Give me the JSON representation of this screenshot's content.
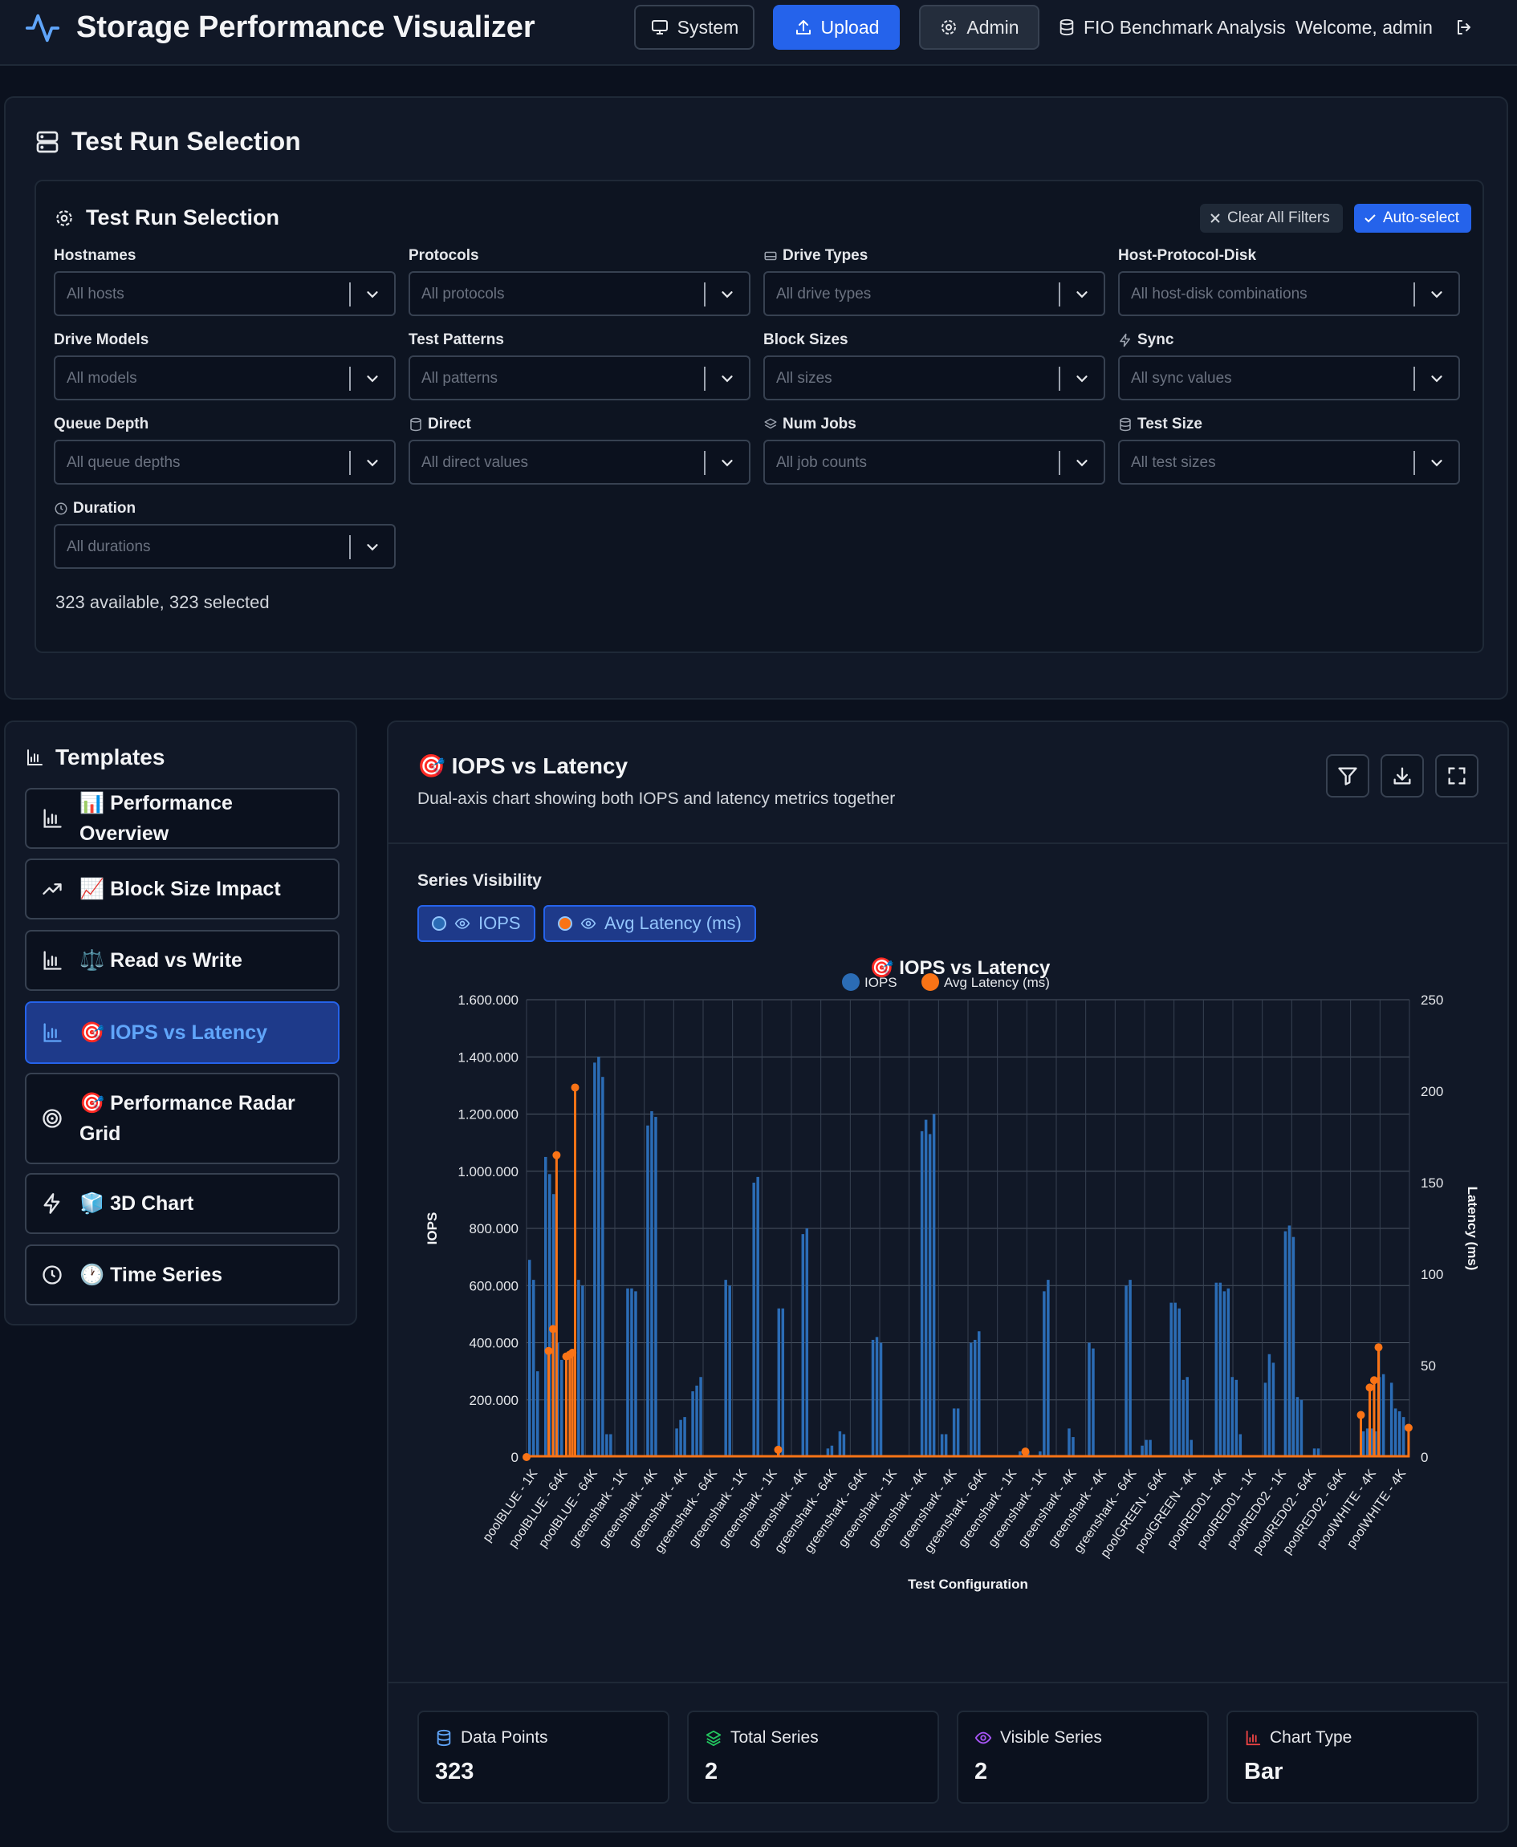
{
  "header": {
    "title": "Storage Performance Visualizer",
    "system_label": "System",
    "upload_label": "Upload",
    "admin_label": "Admin",
    "fio_label": "FIO Benchmark Analysis",
    "welcome": "Welcome, admin"
  },
  "selection": {
    "outer_title": "Test Run Selection",
    "inner_title": "Test Run Selection",
    "clear_label": "Clear All Filters",
    "auto_label": "Auto-select",
    "filters": [
      {
        "label": "Hostnames",
        "placeholder": "All hosts"
      },
      {
        "label": "Protocols",
        "placeholder": "All protocols"
      },
      {
        "label": "Drive Types",
        "placeholder": "All drive types"
      },
      {
        "label": "Host-Protocol-Disk",
        "placeholder": "All host-disk combinations"
      },
      {
        "label": "Drive Models",
        "placeholder": "All models"
      },
      {
        "label": "Test Patterns",
        "placeholder": "All patterns"
      },
      {
        "label": "Block Sizes",
        "placeholder": "All sizes"
      },
      {
        "label": "Sync",
        "placeholder": "All sync values"
      },
      {
        "label": "Queue Depth",
        "placeholder": "All queue depths"
      },
      {
        "label": "Direct",
        "placeholder": "All direct values"
      },
      {
        "label": "Num Jobs",
        "placeholder": "All job counts"
      },
      {
        "label": "Test Size",
        "placeholder": "All test sizes"
      },
      {
        "label": "Duration",
        "placeholder": "All durations"
      }
    ],
    "count_text": "323 available, 323 selected"
  },
  "templates": {
    "title": "Templates",
    "items": [
      {
        "label": "📊 Performance Overview"
      },
      {
        "label": "📈 Block Size Impact"
      },
      {
        "label": "⚖️ Read vs Write"
      },
      {
        "label": "🎯 IOPS vs Latency"
      },
      {
        "label": "🎯 Performance Radar Grid"
      },
      {
        "label": "🧊 3D Chart"
      },
      {
        "label": "🕐 Time Series"
      }
    ]
  },
  "main": {
    "title": "🎯 IOPS vs Latency",
    "description": "Dual-axis chart showing both IOPS and latency metrics together",
    "series_visibility_label": "Series Visibility",
    "series_chips": [
      "IOPS",
      "Avg Latency (ms)"
    ],
    "stats": [
      {
        "label": "Data Points",
        "value": "323"
      },
      {
        "label": "Total Series",
        "value": "2"
      },
      {
        "label": "Visible Series",
        "value": "2"
      },
      {
        "label": "Chart Type",
        "value": "Bar"
      }
    ]
  },
  "colors": {
    "iops": "#2b6cb5",
    "latency": "#f97316",
    "accent": "#2563eb"
  },
  "chart_data": {
    "type": "bar",
    "title": "🎯 IOPS vs Latency",
    "xlabel": "Test Configuration",
    "ylabel": "IOPS",
    "y2label": "Latency (ms)",
    "ylim": [
      0,
      1600000
    ],
    "y2lim": [
      0,
      250
    ],
    "yticks": [
      "0",
      "200.000",
      "400.000",
      "600.000",
      "800.000",
      "1.000.000",
      "1.200.000",
      "1.400.000",
      "1.600.000"
    ],
    "y2ticks": [
      "0",
      "50",
      "100",
      "150",
      "200",
      "250"
    ],
    "legend": [
      "IOPS",
      "Avg Latency (ms)"
    ],
    "categories": [
      "poolBLUE - 1K",
      "poolBLUE - 64K",
      "poolBLUE - 64K",
      "greenshark - 1K",
      "greenshark - 4K",
      "greenshark - 4K",
      "greenshark - 64K",
      "greenshark - 1K",
      "greenshark - 1K",
      "greenshark - 4K",
      "greenshark - 64K",
      "greenshark - 64K",
      "greenshark - 1K",
      "greenshark - 4K",
      "greenshark - 4K",
      "greenshark - 64K",
      "greenshark - 1K",
      "greenshark - 1K",
      "greenshark - 4K",
      "greenshark - 4K",
      "greenshark - 64K",
      "poolGREEN - 64K",
      "poolGREEN - 4K",
      "poolRED01 - 4K",
      "poolRED01 - 1K",
      "poolRED02 - 1K",
      "poolRED02 - 64K",
      "poolRED02 - 64K",
      "poolWHITE - 4K",
      "poolWHITE - 4K"
    ],
    "iops_groups": [
      [
        690000,
        620000,
        300000,
        0,
        1050000,
        990000,
        920000,
        400000,
        340000,
        0,
        0
      ],
      [
        620000,
        600000,
        0,
        0,
        1380000,
        1400000,
        1330000,
        80000,
        80000,
        0,
        0
      ],
      [
        590000,
        590000,
        580000,
        0,
        0,
        1160000,
        1210000,
        1190000,
        0,
        0,
        0
      ],
      [
        100000,
        130000,
        140000,
        0,
        230000,
        250000,
        280000,
        0,
        0,
        0,
        0
      ],
      [
        620000,
        600000,
        0,
        0,
        0,
        0,
        0,
        960000,
        980000,
        0,
        0
      ],
      [
        0,
        520000,
        520000,
        0,
        0,
        0,
        0,
        780000,
        800000,
        0,
        0
      ],
      [
        0,
        30000,
        40000,
        0,
        90000,
        80000,
        0,
        0,
        0,
        0,
        0
      ],
      [
        410000,
        420000,
        400000,
        0,
        0,
        0,
        0,
        0,
        0,
        0,
        0
      ],
      [
        1140000,
        1180000,
        1130000,
        1200000,
        0,
        80000,
        80000,
        0,
        170000,
        170000,
        0
      ],
      [
        400000,
        410000,
        440000,
        0,
        0,
        0,
        0,
        0,
        0,
        0,
        0
      ],
      [
        20000,
        20000,
        20000,
        0,
        0,
        20000,
        580000,
        620000,
        0,
        0,
        0
      ],
      [
        100000,
        70000,
        0,
        0,
        0,
        400000,
        380000,
        0,
        0,
        0,
        0
      ],
      [
        0,
        0,
        600000,
        620000,
        0,
        0,
        40000,
        60000,
        60000,
        0,
        0
      ],
      [
        0,
        540000,
        540000,
        520000,
        270000,
        280000,
        60000,
        0,
        0,
        0,
        0
      ],
      [
        610000,
        610000,
        580000,
        590000,
        280000,
        270000,
        80000,
        0,
        0,
        0,
        0
      ],
      [
        260000,
        360000,
        330000,
        0,
        0,
        790000,
        810000,
        770000,
        210000,
        200000,
        0
      ],
      [
        30000,
        30000,
        0,
        0,
        0,
        0,
        0,
        0,
        0,
        0,
        0
      ],
      [
        90000,
        100000,
        100000,
        90000,
        280000,
        290000,
        0,
        260000,
        170000,
        160000,
        140000
      ]
    ],
    "latency_points": [
      [
        0,
        0
      ],
      [
        0.025,
        58
      ],
      [
        0.03,
        70
      ],
      [
        0.034,
        165
      ],
      [
        0.045,
        55
      ],
      [
        0.049,
        56
      ],
      [
        0.052,
        57
      ],
      [
        0.055,
        202
      ],
      [
        0.285,
        4
      ],
      [
        0.565,
        3
      ],
      [
        0.945,
        23
      ],
      [
        0.955,
        38
      ],
      [
        0.96,
        42
      ],
      [
        0.965,
        60
      ],
      [
        0.999,
        16
      ]
    ]
  }
}
